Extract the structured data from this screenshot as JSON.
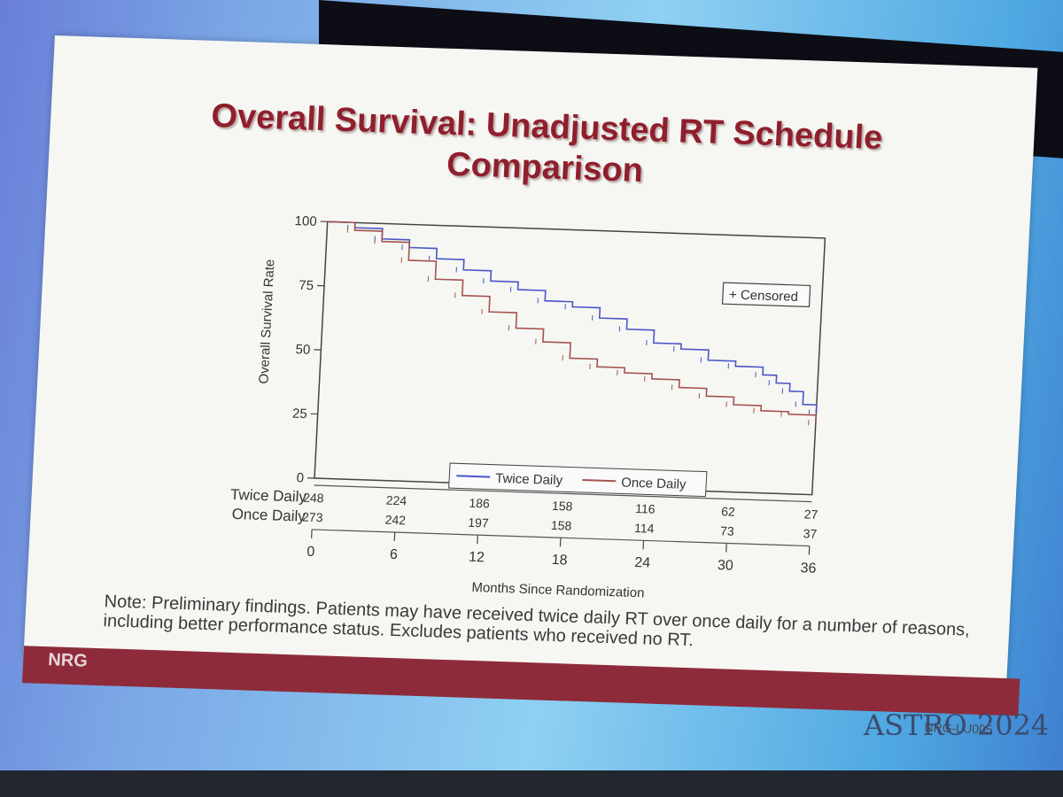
{
  "slide": {
    "title": "Overall Survival: Unadjusted RT Schedule Comparison",
    "note": "Note: Preliminary findings. Patients may have received twice daily RT over once daily for a number of reasons, including better performance status. Excludes patients who received no RT.",
    "logo": "NRG",
    "footer_id": "NRG-LU005"
  },
  "conference": {
    "prefix": "ASTRO",
    "year": "2024"
  },
  "chart_data": {
    "type": "line",
    "ylabel": "Overall Survival Rate",
    "xlabel": "Months Since Randomization",
    "xlim": [
      0,
      36
    ],
    "ylim": [
      0,
      100
    ],
    "x_ticks": [
      0,
      6,
      12,
      18,
      24,
      30,
      36
    ],
    "y_ticks": [
      0,
      25,
      50,
      75,
      100
    ],
    "censored_label": "+ Censored",
    "legend_position": "bottom",
    "series": [
      {
        "name": "Twice Daily",
        "color": "#4a55c8",
        "x": [
          0,
          2,
          4,
          6,
          8,
          10,
          12,
          14,
          16,
          18,
          20,
          22,
          24,
          26,
          28,
          30,
          32,
          33,
          34,
          35,
          36
        ],
        "y": [
          100,
          98,
          94,
          91,
          87,
          83,
          79,
          76,
          72,
          70,
          66,
          62,
          57,
          55,
          51,
          49,
          46,
          43,
          40,
          35,
          32
        ]
      },
      {
        "name": "Once Daily",
        "color": "#a5524f",
        "x": [
          0,
          2,
          4,
          6,
          8,
          10,
          12,
          14,
          16,
          18,
          20,
          22,
          24,
          26,
          28,
          30,
          32,
          34,
          36
        ],
        "y": [
          100,
          97,
          93,
          86,
          79,
          73,
          67,
          61,
          56,
          50,
          47,
          45,
          43,
          40,
          37,
          34,
          32,
          31,
          28
        ]
      }
    ],
    "risk_table": {
      "rows": [
        {
          "label": "Twice Daily",
          "values": [
            "248",
            "224",
            "186",
            "158",
            "116",
            "62",
            "27"
          ]
        },
        {
          "label": "Once Daily",
          "values": [
            "273",
            "242",
            "197",
            "158",
            "114",
            "73",
            "37"
          ]
        }
      ]
    }
  }
}
